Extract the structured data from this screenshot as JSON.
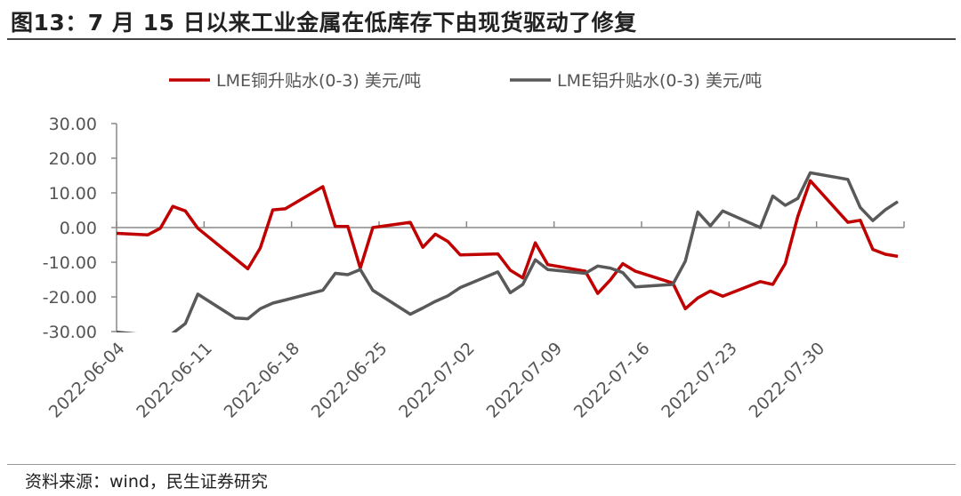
{
  "title": "图13：7 月 15 日以来工业金属在低库存下由现货驱动了修复",
  "footer": "资料来源：wind，民生证券研究",
  "chart_data": {
    "type": "line",
    "title": "图13：7 月 15 日以来工业金属在低库存下由现货驱动了修复",
    "xlabel": "",
    "ylabel": "",
    "ylim": [
      -30,
      30
    ],
    "xlim": [
      "2022-06-04",
      "2022-08-06"
    ],
    "y_ticks": [
      "30.00",
      "20.00",
      "10.00",
      "0.00",
      "-10.00",
      "-20.00",
      "-30.00"
    ],
    "x_ticks": [
      "2022-06-04",
      "2022-06-11",
      "2022-06-18",
      "2022-06-25",
      "2022-07-02",
      "2022-07-09",
      "2022-07-16",
      "2022-07-23",
      "2022-07-30"
    ],
    "legend_position": "top",
    "grid": false,
    "series": [
      {
        "name": "LME铜升贴水(0-3) 美元/吨",
        "color": "#C00000",
        "points": [
          [
            "2022-06-03",
            -1.6
          ],
          [
            "2022-06-06",
            -2.1
          ],
          [
            "2022-06-07",
            -0.2
          ],
          [
            "2022-06-08",
            6.1
          ],
          [
            "2022-06-09",
            4.8
          ],
          [
            "2022-06-10",
            -0.2
          ],
          [
            "2022-06-14",
            -11.9
          ],
          [
            "2022-06-15",
            -5.9
          ],
          [
            "2022-06-16",
            5.1
          ],
          [
            "2022-06-17",
            5.4
          ],
          [
            "2022-06-20",
            11.8
          ],
          [
            "2022-06-21",
            0.3
          ],
          [
            "2022-06-22",
            0.3
          ],
          [
            "2022-06-23",
            -11.7
          ],
          [
            "2022-06-24",
            0.0
          ],
          [
            "2022-06-27",
            1.5
          ],
          [
            "2022-06-28",
            -5.7
          ],
          [
            "2022-06-29",
            -1.9
          ],
          [
            "2022-06-30",
            -4.0
          ],
          [
            "2022-07-01",
            -7.9
          ],
          [
            "2022-07-04",
            -7.6
          ],
          [
            "2022-07-05",
            -12.3
          ],
          [
            "2022-07-06",
            -14.5
          ],
          [
            "2022-07-07",
            -4.4
          ],
          [
            "2022-07-08",
            -10.7
          ],
          [
            "2022-07-11",
            -12.6
          ],
          [
            "2022-07-12",
            -19.0
          ],
          [
            "2022-07-13",
            -15.1
          ],
          [
            "2022-07-14",
            -10.4
          ],
          [
            "2022-07-15",
            -12.6
          ],
          [
            "2022-07-18",
            -16.0
          ],
          [
            "2022-07-19",
            -23.4
          ],
          [
            "2022-07-20",
            -20.3
          ],
          [
            "2022-07-21",
            -18.3
          ],
          [
            "2022-07-22",
            -19.8
          ],
          [
            "2022-07-25",
            -15.6
          ],
          [
            "2022-07-26",
            -16.4
          ],
          [
            "2022-07-27",
            -10.4
          ],
          [
            "2022-07-28",
            3.2
          ],
          [
            "2022-07-29",
            13.5
          ],
          [
            "2022-08-01",
            1.5
          ],
          [
            "2022-08-02",
            2.1
          ],
          [
            "2022-08-03",
            -6.3
          ],
          [
            "2022-08-04",
            -7.7
          ],
          [
            "2022-08-05",
            -8.3
          ]
        ]
      },
      {
        "name": "LME铝升贴水(0-3) 美元/吨",
        "color": "#595959",
        "points": [
          [
            "2022-06-03",
            -30.0
          ],
          [
            "2022-06-06",
            -31.0
          ],
          [
            "2022-06-07",
            -32.5
          ],
          [
            "2022-06-08",
            -30.5
          ],
          [
            "2022-06-09",
            -27.7
          ],
          [
            "2022-06-10",
            -19.2
          ],
          [
            "2022-06-13",
            -26.1
          ],
          [
            "2022-06-14",
            -26.3
          ],
          [
            "2022-06-15",
            -23.4
          ],
          [
            "2022-06-16",
            -21.8
          ],
          [
            "2022-06-17",
            -20.9
          ],
          [
            "2022-06-20",
            -18.1
          ],
          [
            "2022-06-21",
            -13.2
          ],
          [
            "2022-06-22",
            -13.6
          ],
          [
            "2022-06-23",
            -12.1
          ],
          [
            "2022-06-24",
            -18.1
          ],
          [
            "2022-06-27",
            -25.0
          ],
          [
            "2022-06-28",
            -23.2
          ],
          [
            "2022-06-29",
            -21.3
          ],
          [
            "2022-06-30",
            -19.7
          ],
          [
            "2022-07-01",
            -17.3
          ],
          [
            "2022-07-04",
            -12.8
          ],
          [
            "2022-07-05",
            -18.8
          ],
          [
            "2022-07-06",
            -16.4
          ],
          [
            "2022-07-07",
            -9.3
          ],
          [
            "2022-07-08",
            -12.1
          ],
          [
            "2022-07-11",
            -13.2
          ],
          [
            "2022-07-12",
            -11.1
          ],
          [
            "2022-07-13",
            -11.7
          ],
          [
            "2022-07-14",
            -13.0
          ],
          [
            "2022-07-15",
            -17.1
          ],
          [
            "2022-07-18",
            -16.4
          ],
          [
            "2022-07-19",
            -9.7
          ],
          [
            "2022-07-20",
            4.5
          ],
          [
            "2022-07-21",
            0.5
          ],
          [
            "2022-07-22",
            4.8
          ],
          [
            "2022-07-25",
            0.0
          ],
          [
            "2022-07-26",
            9.1
          ],
          [
            "2022-07-27",
            6.4
          ],
          [
            "2022-07-28",
            8.4
          ],
          [
            "2022-07-29",
            15.8
          ],
          [
            "2022-08-01",
            13.9
          ],
          [
            "2022-08-02",
            5.8
          ],
          [
            "2022-08-03",
            2.0
          ],
          [
            "2022-08-04",
            5.1
          ],
          [
            "2022-08-05",
            7.5
          ]
        ]
      }
    ]
  }
}
